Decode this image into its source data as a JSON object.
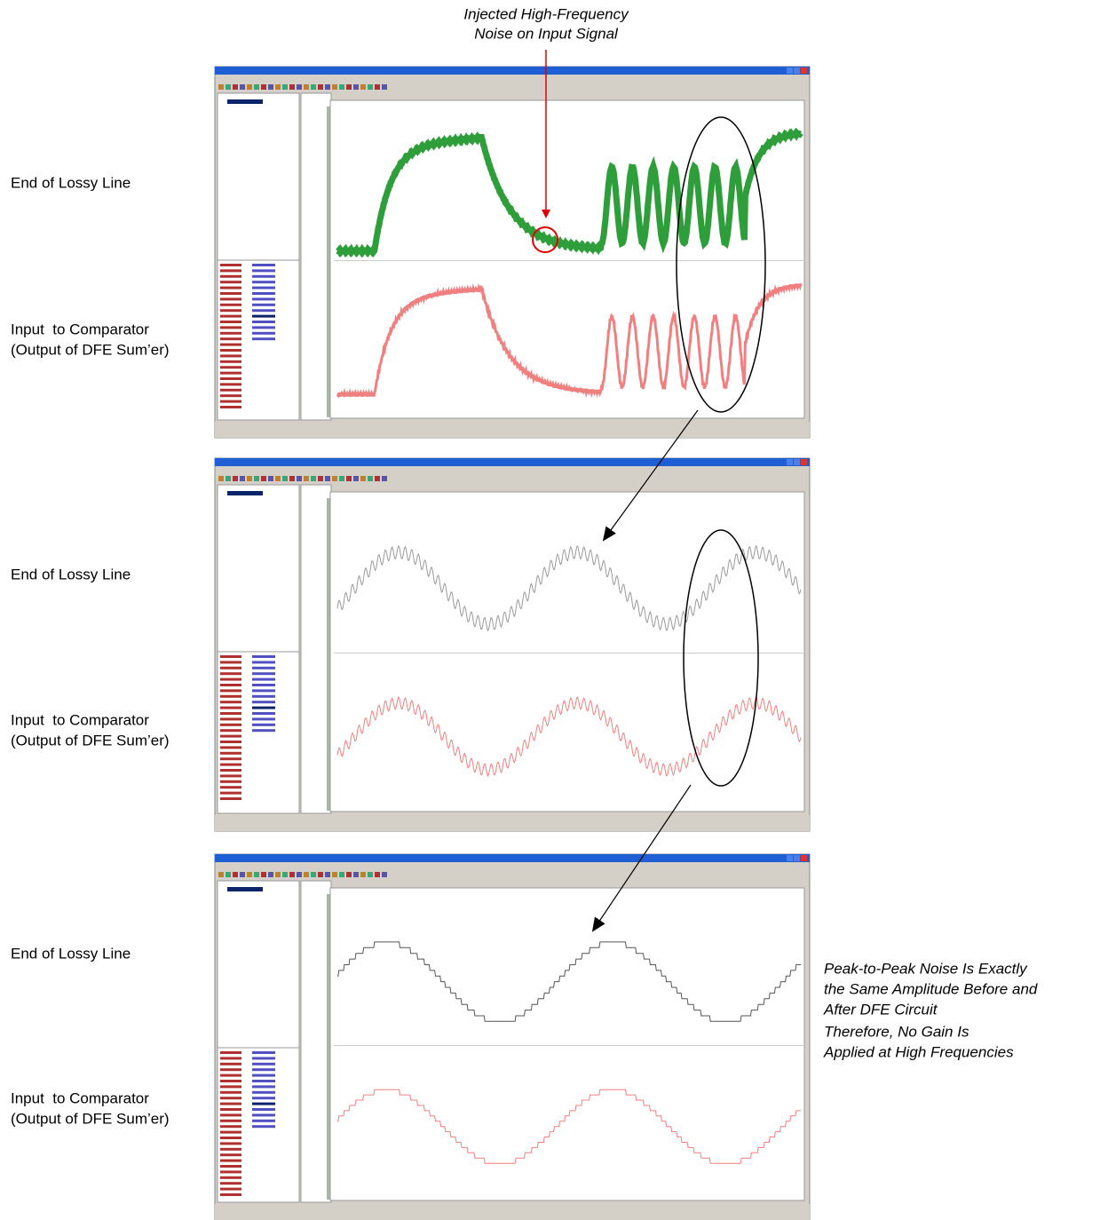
{
  "callout": {
    "lines": [
      "Injected High-Frequency",
      "Noise on Input Signal"
    ]
  },
  "panels": [
    {
      "top_label": "End of Lossy Line",
      "bottom_label": [
        "Input  to Comparator",
        "(Output of DFE Sum’er)"
      ]
    },
    {
      "top_label": "End of Lossy Line",
      "bottom_label": [
        "Input  to Comparator",
        "(Output of DFE Sum’er)"
      ]
    },
    {
      "top_label": "End of Lossy Line",
      "bottom_label": [
        "Input  to Comparator",
        "(Output of DFE Sum’er)"
      ]
    }
  ],
  "notes": [
    [
      "Peak-to-Peak Noise Is Exactly",
      "the Same Amplitude Before and",
      "After DFE Circuit"
    ],
    [
      "Therefore, No Gain Is",
      "Applied at High Frequencies"
    ]
  ]
}
